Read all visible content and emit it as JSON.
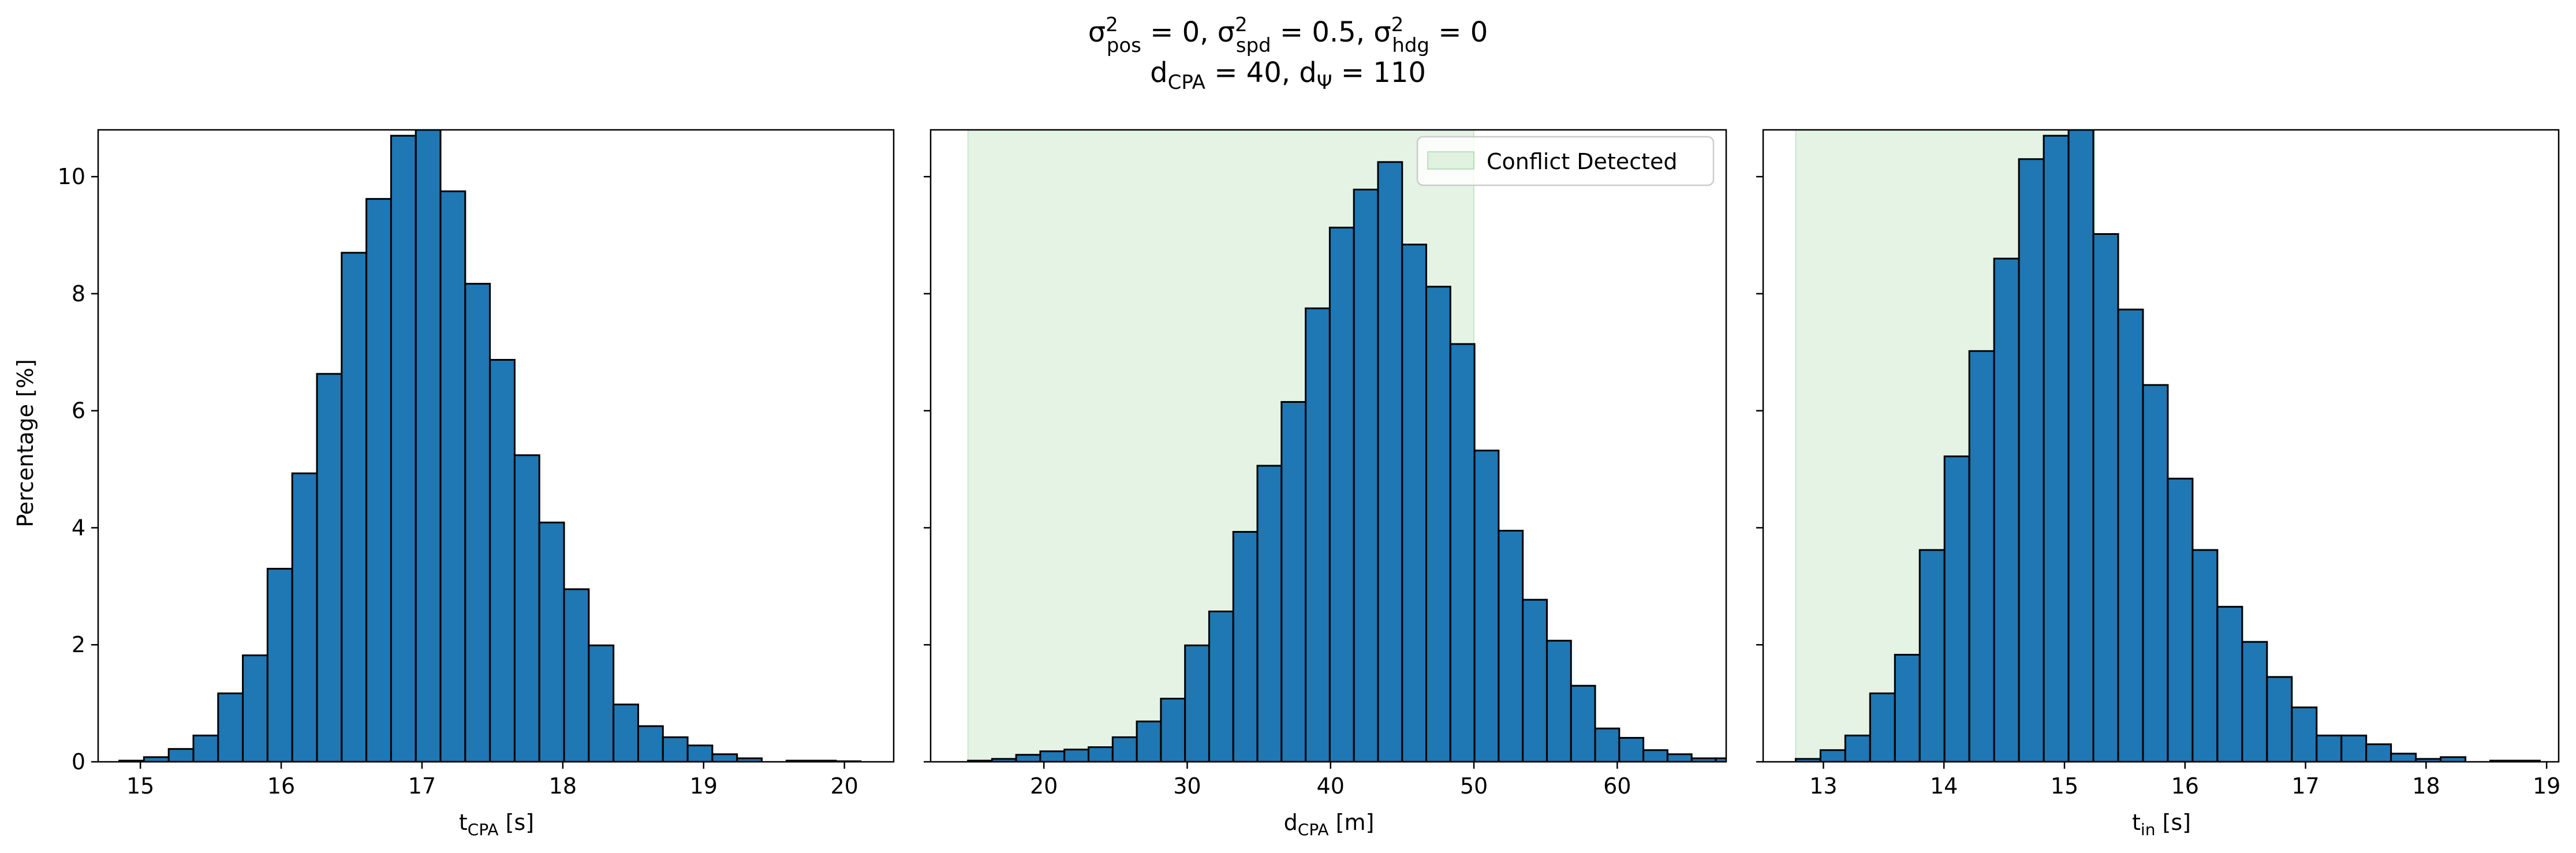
{
  "figure": {
    "title_line1": "σ²pos = 0, σ²spd = 0.5, σ²hdg = 0",
    "title_line2": "dCPA = 40, dΨ = 110"
  },
  "colors": {
    "bar": "#1f77b4",
    "edge": "#000000",
    "region": "#2ca02c"
  },
  "chart_data": [
    {
      "type": "bar",
      "xlabel": "tCPA [s]",
      "ylabel": "Percentage [%]",
      "xlim": [
        14.7,
        20.35
      ],
      "ylim": [
        0,
        10.8
      ],
      "xticks": [
        15,
        16,
        17,
        18,
        19,
        20
      ],
      "yticks": [
        0,
        2,
        4,
        6,
        8,
        10
      ],
      "bin_start": 14.85,
      "bin_width": 0.1755,
      "values": [
        0.02,
        0.08,
        0.22,
        0.45,
        1.17,
        1.82,
        3.3,
        4.93,
        6.63,
        8.7,
        9.62,
        10.7,
        10.8,
        9.75,
        8.17,
        6.87,
        5.24,
        4.09,
        2.95,
        1.99,
        0.98,
        0.61,
        0.42,
        0.28,
        0.13,
        0.06,
        0.0,
        0.02,
        0.02,
        0.01
      ]
    },
    {
      "type": "bar",
      "xlabel": "dCPA [m]",
      "ylabel": "",
      "xlim": [
        12.1,
        67.6
      ],
      "ylim": [
        0,
        10.8
      ],
      "xticks": [
        20,
        30,
        40,
        50,
        60
      ],
      "yticks": [
        0,
        2,
        4,
        6,
        8,
        10
      ],
      "bin_start": 14.7,
      "bin_width": 1.683,
      "values": [
        0.02,
        0.05,
        0.12,
        0.18,
        0.21,
        0.25,
        0.42,
        0.69,
        1.08,
        1.99,
        2.57,
        3.93,
        5.06,
        6.15,
        7.75,
        9.13,
        9.78,
        10.25,
        8.84,
        8.12,
        7.14,
        5.32,
        3.95,
        2.77,
        2.07,
        1.3,
        0.57,
        0.41,
        0.2,
        0.13,
        0.06,
        0.06
      ],
      "shaded_region": [
        14.7,
        50
      ],
      "legend": {
        "label": "Conflict Detected",
        "position": "upper right"
      }
    },
    {
      "type": "bar",
      "xlabel": "tin [s]",
      "ylabel": "",
      "xlim": [
        12.5,
        19.1
      ],
      "ylim": [
        0,
        10.8
      ],
      "xticks": [
        13,
        14,
        15,
        16,
        17,
        18,
        19
      ],
      "yticks": [
        0,
        2,
        4,
        6,
        8,
        10
      ],
      "bin_start": 12.77,
      "bin_width": 0.2058,
      "values": [
        0.05,
        0.2,
        0.45,
        1.17,
        1.83,
        3.62,
        5.22,
        7.02,
        8.6,
        10.3,
        10.7,
        10.8,
        9.02,
        7.73,
        6.44,
        4.84,
        3.62,
        2.65,
        2.05,
        1.45,
        0.93,
        0.45,
        0.45,
        0.3,
        0.14,
        0.05,
        0.08,
        0.0,
        0.02,
        0.02
      ],
      "shaded_region": [
        12.77,
        15.25
      ]
    }
  ]
}
